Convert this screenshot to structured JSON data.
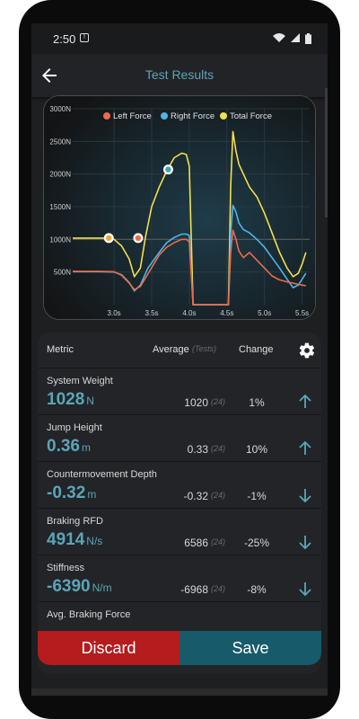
{
  "status_bar": {
    "time": "2:50",
    "notification_icon": "alert-box-icon",
    "wifi_icon": "wifi-icon",
    "signal_icon": "signal-icon",
    "battery_icon": "battery-icon"
  },
  "app_bar": {
    "title": "Test Results",
    "back_icon": "arrow-left-icon"
  },
  "chart_data": {
    "type": "line",
    "legend": [
      "Left Force",
      "Right Force",
      "Total Force"
    ],
    "legend_placement": "top",
    "colors": {
      "left": "#ec6b4a",
      "right": "#4fb4e8",
      "total": "#f2e04c"
    },
    "yticks": [
      "3000N",
      "2500N",
      "2000N",
      "1500N",
      "1000N",
      "500N"
    ],
    "xticks": [
      "3.0s",
      "3.5s",
      "4.0s",
      "4.5s",
      "5.0s",
      "5.5s"
    ],
    "ylim": [
      0,
      3000
    ],
    "xlim": [
      2.45,
      5.6
    ],
    "grid": true,
    "series": [
      {
        "name": "Total Force",
        "color": "#f2e04c",
        "x": [
          2.45,
          2.6,
          2.8,
          2.95,
          3.0,
          3.1,
          3.2,
          3.27,
          3.35,
          3.42,
          3.5,
          3.6,
          3.7,
          3.8,
          3.9,
          3.96,
          4.0,
          4.05,
          4.3,
          4.45,
          4.52,
          4.55,
          4.58,
          4.62,
          4.66,
          4.72,
          4.8,
          4.9,
          5.0,
          5.1,
          5.2,
          5.3,
          5.38,
          5.45,
          5.5,
          5.55
        ],
        "y": [
          1020,
          1020,
          1020,
          1020,
          1000,
          900,
          700,
          430,
          560,
          1050,
          1500,
          1800,
          2050,
          2250,
          2320,
          2300,
          2120,
          0,
          0,
          0,
          0,
          1800,
          2650,
          2350,
          2150,
          2000,
          1800,
          1650,
          1400,
          1100,
          800,
          560,
          430,
          480,
          620,
          800
        ]
      },
      {
        "name": "Right Force",
        "color": "#4fb4e8",
        "x": [
          2.45,
          2.6,
          2.8,
          3.0,
          3.1,
          3.2,
          3.27,
          3.35,
          3.45,
          3.6,
          3.7,
          3.8,
          3.9,
          3.96,
          4.0,
          4.05,
          4.45,
          4.52,
          4.55,
          4.58,
          4.62,
          4.66,
          4.72,
          4.8,
          4.9,
          5.0,
          5.1,
          5.2,
          5.3,
          5.38,
          5.45,
          5.5,
          5.55
        ],
        "y": [
          505,
          505,
          505,
          500,
          460,
          340,
          210,
          300,
          560,
          800,
          950,
          1030,
          1080,
          1080,
          1060,
          0,
          0,
          0,
          1100,
          1520,
          1420,
          1250,
          1150,
          1100,
          1000,
          880,
          720,
          560,
          390,
          260,
          300,
          390,
          480
        ]
      },
      {
        "name": "Left Force",
        "color": "#ec6b4a",
        "x": [
          2.45,
          2.6,
          2.8,
          3.0,
          3.1,
          3.2,
          3.27,
          3.35,
          3.45,
          3.6,
          3.7,
          3.8,
          3.9,
          3.96,
          4.0,
          4.05,
          4.45,
          4.52,
          4.55,
          4.58,
          4.62,
          4.66,
          4.72,
          4.8,
          4.9,
          5.0,
          5.1,
          5.2,
          5.3,
          5.38,
          5.45,
          5.5,
          5.55
        ],
        "y": [
          510,
          510,
          510,
          505,
          450,
          330,
          230,
          280,
          470,
          760,
          880,
          950,
          1000,
          1000,
          960,
          0,
          0,
          0,
          800,
          1140,
          1000,
          820,
          720,
          800,
          680,
          560,
          440,
          380,
          350,
          330,
          310,
          300,
          290
        ]
      }
    ],
    "markers": [
      {
        "x": 2.93,
        "y": 1020,
        "color": "#f2a63a"
      },
      {
        "x": 3.32,
        "y": 1020,
        "color": "#ec6b4a"
      },
      {
        "x": 3.72,
        "y": 2070,
        "color": "#38a8a8"
      }
    ]
  },
  "table": {
    "header": {
      "metric": "Metric",
      "average": "Average",
      "tests": "(Tests)",
      "change": "Change",
      "settings_icon": "gear-icon"
    },
    "rows": [
      {
        "name": "System Weight",
        "value": "1028",
        "unit": "N",
        "average": "1020",
        "tests": "(24)",
        "change": "1%",
        "direction": "up"
      },
      {
        "name": "Jump Height",
        "value": "0.36",
        "unit": "m",
        "average": "0.33",
        "tests": "(24)",
        "change": "10%",
        "direction": "up"
      },
      {
        "name": "Countermovement Depth",
        "value": "-0.32",
        "unit": "m",
        "average": "-0.32",
        "tests": "(24)",
        "change": "-1%",
        "direction": "down"
      },
      {
        "name": "Braking RFD",
        "value": "4914",
        "unit": "N/s",
        "average": "6586",
        "tests": "(24)",
        "change": "-25%",
        "direction": "down"
      },
      {
        "name": "Stiffness",
        "value": "-6390",
        "unit": "N/m",
        "average": "-6968",
        "tests": "(24)",
        "change": "-8%",
        "direction": "down"
      },
      {
        "name": "Avg. Braking Force",
        "value": "",
        "unit": "",
        "average": "",
        "tests": "",
        "change": "",
        "direction": ""
      }
    ]
  },
  "buttons": {
    "discard": "Discard",
    "save": "Save"
  }
}
